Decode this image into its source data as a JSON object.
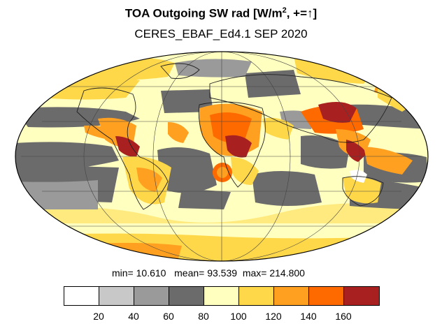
{
  "title": {
    "main": "TOA Outgoing SW rad [W/m",
    "sup": "2",
    "tail": ", +=↑]"
  },
  "subtitle": "CERES_EBAF_Ed4.1 SEP 2020",
  "stats": {
    "min_label": "min=",
    "min": "10.610",
    "mean_label": "mean=",
    "mean": "93.539",
    "max_label": "max=",
    "max": "214.800"
  },
  "colorbar": {
    "colors": [
      "#ffffff",
      "#c8c8c8",
      "#9a9a9a",
      "#6b6b6b",
      "#ffffc0",
      "#ffd84a",
      "#ffa020",
      "#ff6a00",
      "#a82020"
    ],
    "ticks": [
      "20",
      "40",
      "60",
      "80",
      "100",
      "120",
      "140",
      "160"
    ]
  }
}
